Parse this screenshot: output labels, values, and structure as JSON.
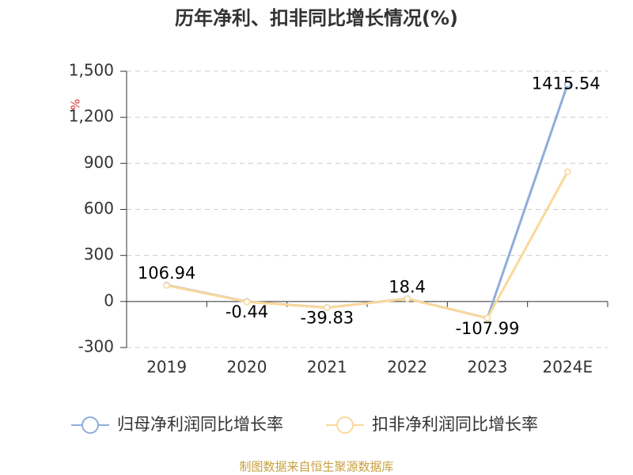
{
  "chart_data": {
    "type": "line",
    "title": "历年净利、扣非同比增长情况(%)",
    "y_label": "%",
    "categories": [
      "2019",
      "2020",
      "2021",
      "2022",
      "2023",
      "2024E"
    ],
    "series": [
      {
        "name": "归母净利润同比增长率",
        "color": "#8fadd9",
        "values": [
          106.94,
          -0.44,
          -39.83,
          18.4,
          -107.99,
          1415.54
        ]
      },
      {
        "name": "扣非净利润同比增长率",
        "color": "#fad89a",
        "values": [
          105,
          -2,
          -40,
          18,
          -108,
          845
        ]
      }
    ],
    "ylim": [
      -300,
      1500
    ],
    "yticks": [
      -300,
      0,
      300,
      600,
      900,
      {
        "value": 1200,
        "label": "1,200"
      },
      {
        "value": 1500,
        "label": "1,500"
      }
    ],
    "grid": true,
    "source": "制图数据来自恒生聚源数据库"
  }
}
